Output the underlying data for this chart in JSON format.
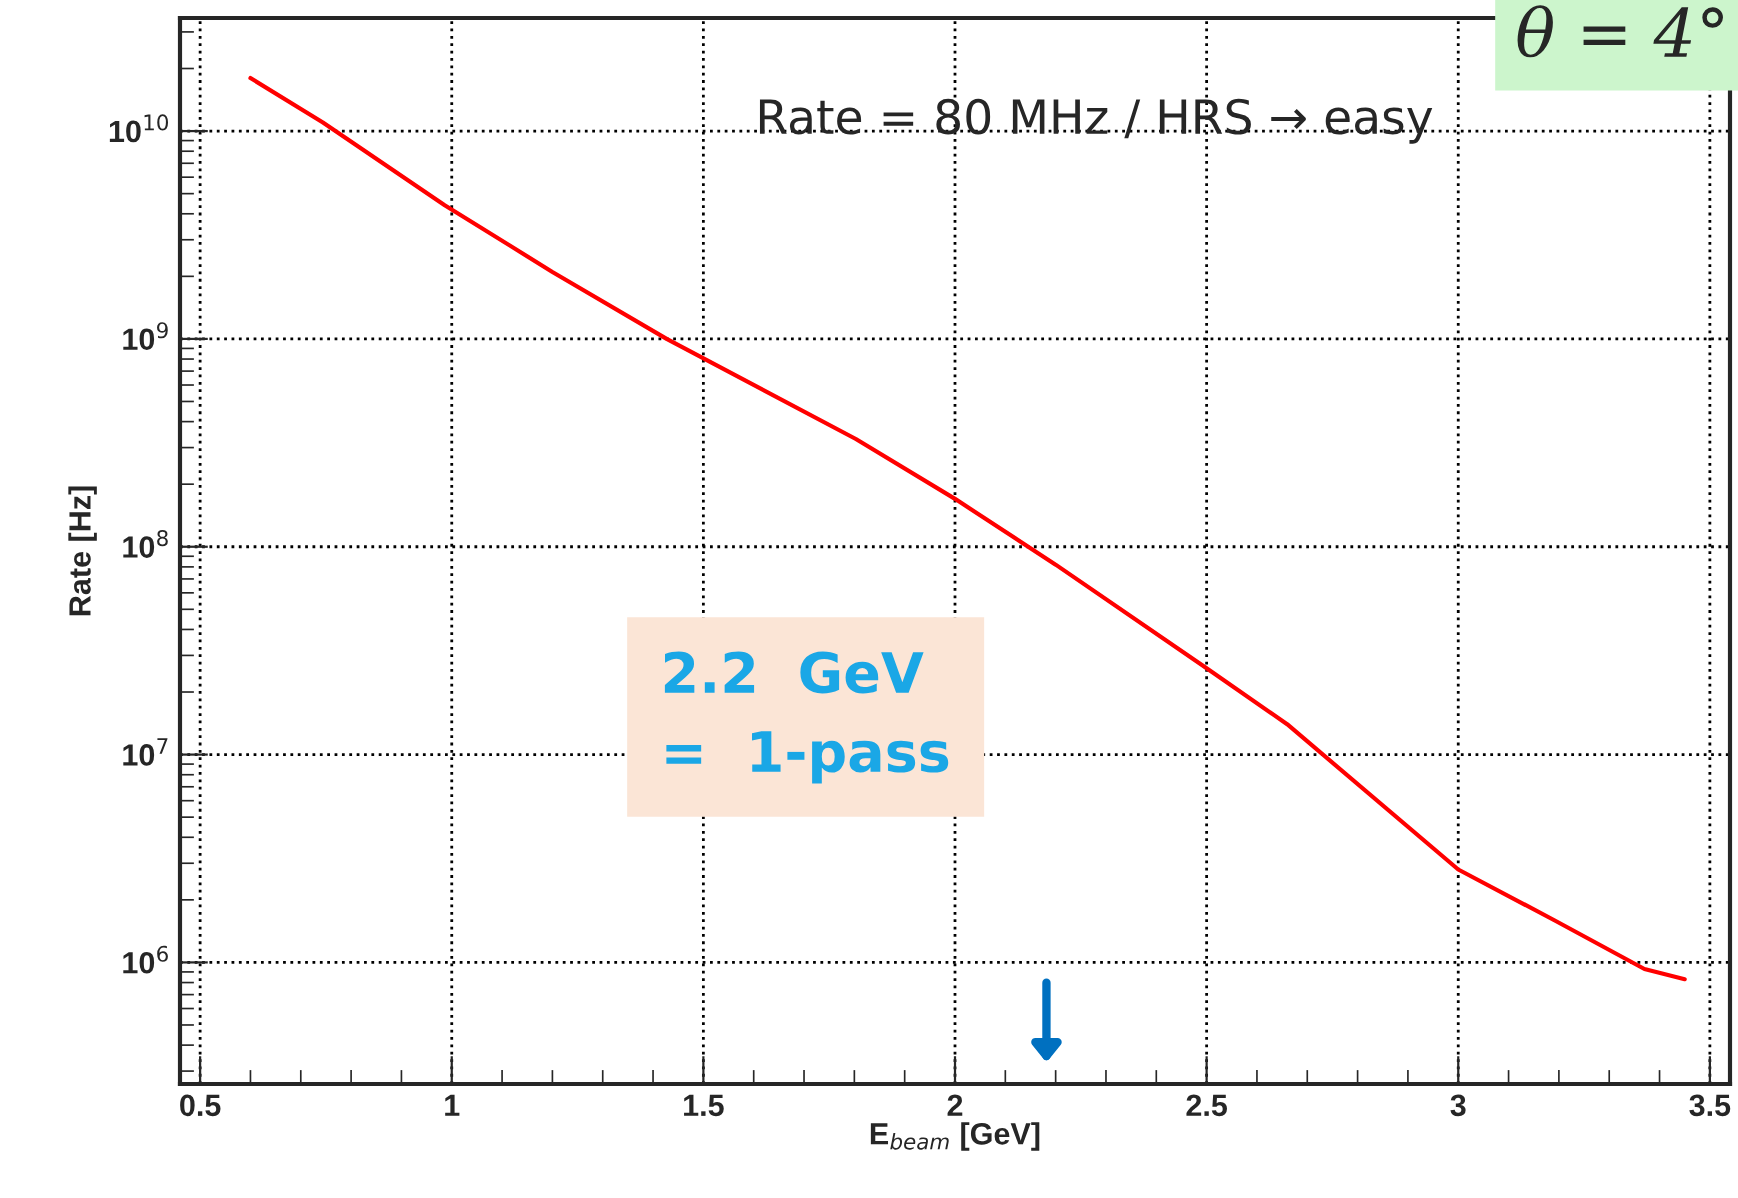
{
  "chart_data": {
    "type": "line",
    "xlabel": "E$_{beam}$ [GeV]",
    "ylabel": "Rate [Hz]",
    "log": "y",
    "x": [
      0.6,
      0.744,
      0.986,
      1.2,
      1.427,
      1.803,
      2.0,
      2.2,
      2.5,
      2.66,
      3.0,
      3.19,
      3.37,
      3.45
    ],
    "series": [
      {
        "color": "#ff0000",
        "values": [
          18000000000.0,
          11000000000.0,
          4400000000.0,
          2100000000.0,
          1000000000.0,
          330000000.0,
          170000000.0,
          82000000.0,
          26000000.0,
          14000000.0,
          2800000.0,
          1600000.0,
          930000.0,
          830000.0
        ]
      }
    ],
    "xlim": [
      0.46,
      3.54
    ],
    "xticks": [
      0.5,
      1,
      1.5,
      2,
      2.5,
      3,
      3.5
    ],
    "ylim": [
      260000.0,
      35000000000.0
    ],
    "yticks": [
      {
        "value": 1000000.0,
        "label": "10$^{6}$"
      },
      {
        "value": 10000000.0,
        "label": "10$^{7}$"
      },
      {
        "value": 100000000.0,
        "label": "10$^{8}$"
      },
      {
        "value": 1000000000.0,
        "label": "10$^{9}$"
      },
      {
        "value": 10000000000.0,
        "label": "10$^{10}$"
      }
    ],
    "grid": true,
    "line_style": "solid",
    "marker": "none",
    "annotations": [
      "Rate = 80 MHz / HRS → easy",
      "2.2  GeV\n=  1-pass",
      "θ = 4°"
    ]
  }
}
